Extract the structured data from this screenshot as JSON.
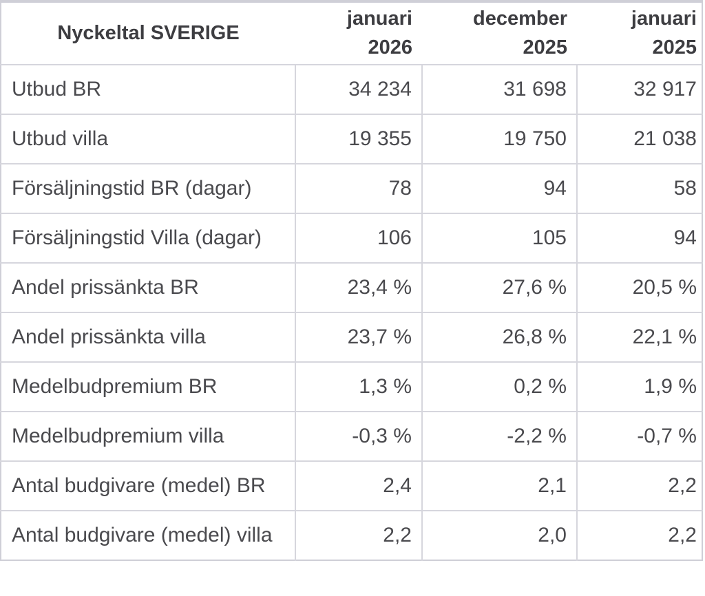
{
  "colors": {
    "background": "#ffffff",
    "grid_border": "#d6d6dd",
    "outer_border": "#cfcfd7",
    "text": "#4a4a4e",
    "header_text": "#3d3d41"
  },
  "table": {
    "title": "Nyckeltal SVERIGE",
    "columns": [
      "januari\n2026",
      "december\n2025",
      "januari\n2025"
    ],
    "rows": [
      {
        "label": "Utbud BR",
        "values": [
          "34 234",
          "31 698",
          "32 917"
        ]
      },
      {
        "label": "Utbud villa",
        "values": [
          "19 355",
          "19 750",
          "21 038"
        ]
      },
      {
        "label": "Försäljningstid BR (dagar)",
        "values": [
          "78",
          "94",
          "58"
        ]
      },
      {
        "label": "Försäljningstid Villa (dagar)",
        "values": [
          "106",
          "105",
          "94"
        ]
      },
      {
        "label": "Andel prissänkta BR",
        "values": [
          "23,4 %",
          "27,6 %",
          "20,5 %"
        ]
      },
      {
        "label": "Andel prissänkta villa",
        "values": [
          "23,7 %",
          "26,8 %",
          "22,1 %"
        ]
      },
      {
        "label": "Medelbudpremium BR",
        "values": [
          "1,3 %",
          "0,2 %",
          "1,9 %"
        ]
      },
      {
        "label": "Medelbudpremium villa",
        "values": [
          "-0,3 %",
          "-2,2 %",
          "-0,7 %"
        ]
      },
      {
        "label": "Antal budgivare (medel) BR",
        "values": [
          "2,4",
          "2,1",
          "2,2"
        ]
      },
      {
        "label": "Antal budgivare (medel) villa",
        "values": [
          "2,2",
          "2,0",
          "2,2"
        ]
      }
    ]
  }
}
